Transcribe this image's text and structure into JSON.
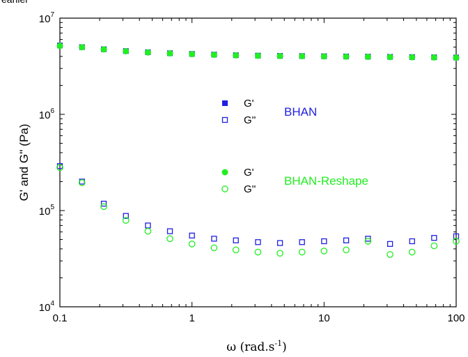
{
  "clipped_caption": "earlier",
  "chart_data": {
    "type": "scatter",
    "xlabel_main": "ω (rad.s",
    "xlabel_sup": "-1",
    "xlabel_close": ")",
    "ylabel": "G' and G'' (Pa)",
    "xscale": "log",
    "yscale": "log",
    "xlim": [
      0.1,
      100
    ],
    "ylim": [
      10000,
      10000000
    ],
    "x_ticks": [
      {
        "value": 0.1,
        "label": "0.1"
      },
      {
        "value": 1,
        "label": "1"
      },
      {
        "value": 10,
        "label": "10"
      },
      {
        "value": 100,
        "label": "100"
      }
    ],
    "y_ticks": [
      {
        "value": 10000,
        "base": "10",
        "exp": "4"
      },
      {
        "value": 100000,
        "base": "10",
        "exp": "5"
      },
      {
        "value": 1000000,
        "base": "10",
        "exp": "6"
      },
      {
        "value": 10000000,
        "base": "10",
        "exp": "7"
      }
    ],
    "x": [
      0.1,
      0.147,
      0.215,
      0.316,
      0.464,
      0.681,
      1.0,
      1.47,
      2.15,
      3.16,
      4.64,
      6.81,
      10.0,
      14.7,
      21.5,
      31.6,
      46.4,
      68.1,
      100.0
    ],
    "series": [
      {
        "name": "G'",
        "group": "BHAN",
        "marker": "filled-square",
        "color": "#1f1fe0",
        "values": [
          5200000,
          5000000,
          4750000,
          4550000,
          4420000,
          4320000,
          4250000,
          4180000,
          4120000,
          4080000,
          4060000,
          4040000,
          4020000,
          4000000,
          3980000,
          3960000,
          3940000,
          3920000,
          3900000
        ]
      },
      {
        "name": "G''",
        "group": "BHAN",
        "marker": "open-square",
        "color": "#1f1fe0",
        "values": [
          290000,
          200000,
          118000,
          88000,
          70000,
          61000,
          55000,
          51000,
          49000,
          47000,
          46000,
          47000,
          48000,
          49000,
          51000,
          45000,
          48000,
          52000,
          54000
        ]
      },
      {
        "name": "G'",
        "group": "BHAN-Reshape",
        "marker": "filled-circle",
        "color": "#22ee22",
        "values": [
          5150000,
          4980000,
          4730000,
          4530000,
          4400000,
          4300000,
          4230000,
          4160000,
          4100000,
          4060000,
          4040000,
          4020000,
          4000000,
          3980000,
          3960000,
          3940000,
          3920000,
          3900000,
          3880000
        ]
      },
      {
        "name": "G''",
        "group": "BHAN-Reshape",
        "marker": "open-circle",
        "color": "#22ee22",
        "values": [
          280000,
          195000,
          110000,
          79000,
          61000,
          51000,
          45000,
          41000,
          39000,
          37000,
          36000,
          37000,
          38000,
          39000,
          48000,
          35000,
          37000,
          43000,
          48000
        ]
      }
    ],
    "legend_groups": [
      {
        "title": "BHAN",
        "color": "#1f1fe0",
        "entries": [
          {
            "label": "G'",
            "marker": "filled-square"
          },
          {
            "label": "G''",
            "marker": "open-square"
          }
        ]
      },
      {
        "title": "BHAN-Reshape",
        "color": "#22ee22",
        "entries": [
          {
            "label": "G'",
            "marker": "filled-circle"
          },
          {
            "label": "G''",
            "marker": "open-circle"
          }
        ]
      }
    ],
    "legend_placement": "center",
    "grid": false
  }
}
